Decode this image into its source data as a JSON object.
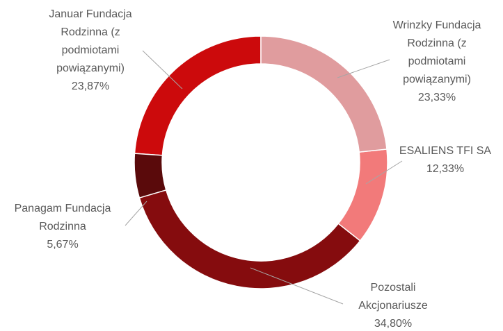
{
  "chart_data": {
    "type": "pie",
    "donut": true,
    "categories": [
      "Wrinzky Fundacja Rodzinna (z podmiotami powiązanymi)",
      "ESALIENS TFI SA",
      "Pozostali Akcjonariusze",
      "Panagam Fundacja Rodzinna",
      "Januar Fundacja Rodzinna (z podmiotami powiązanymi)"
    ],
    "values": [
      23.33,
      12.33,
      34.8,
      5.67,
      23.87
    ],
    "value_labels": [
      "23,33%",
      "12,33%",
      "34,80%",
      "5,67%",
      "23,87%"
    ],
    "colors": [
      "#e09c9e",
      "#f27a7a",
      "#850c0e",
      "#5a0a0b",
      "#cc0a0c"
    ]
  }
}
